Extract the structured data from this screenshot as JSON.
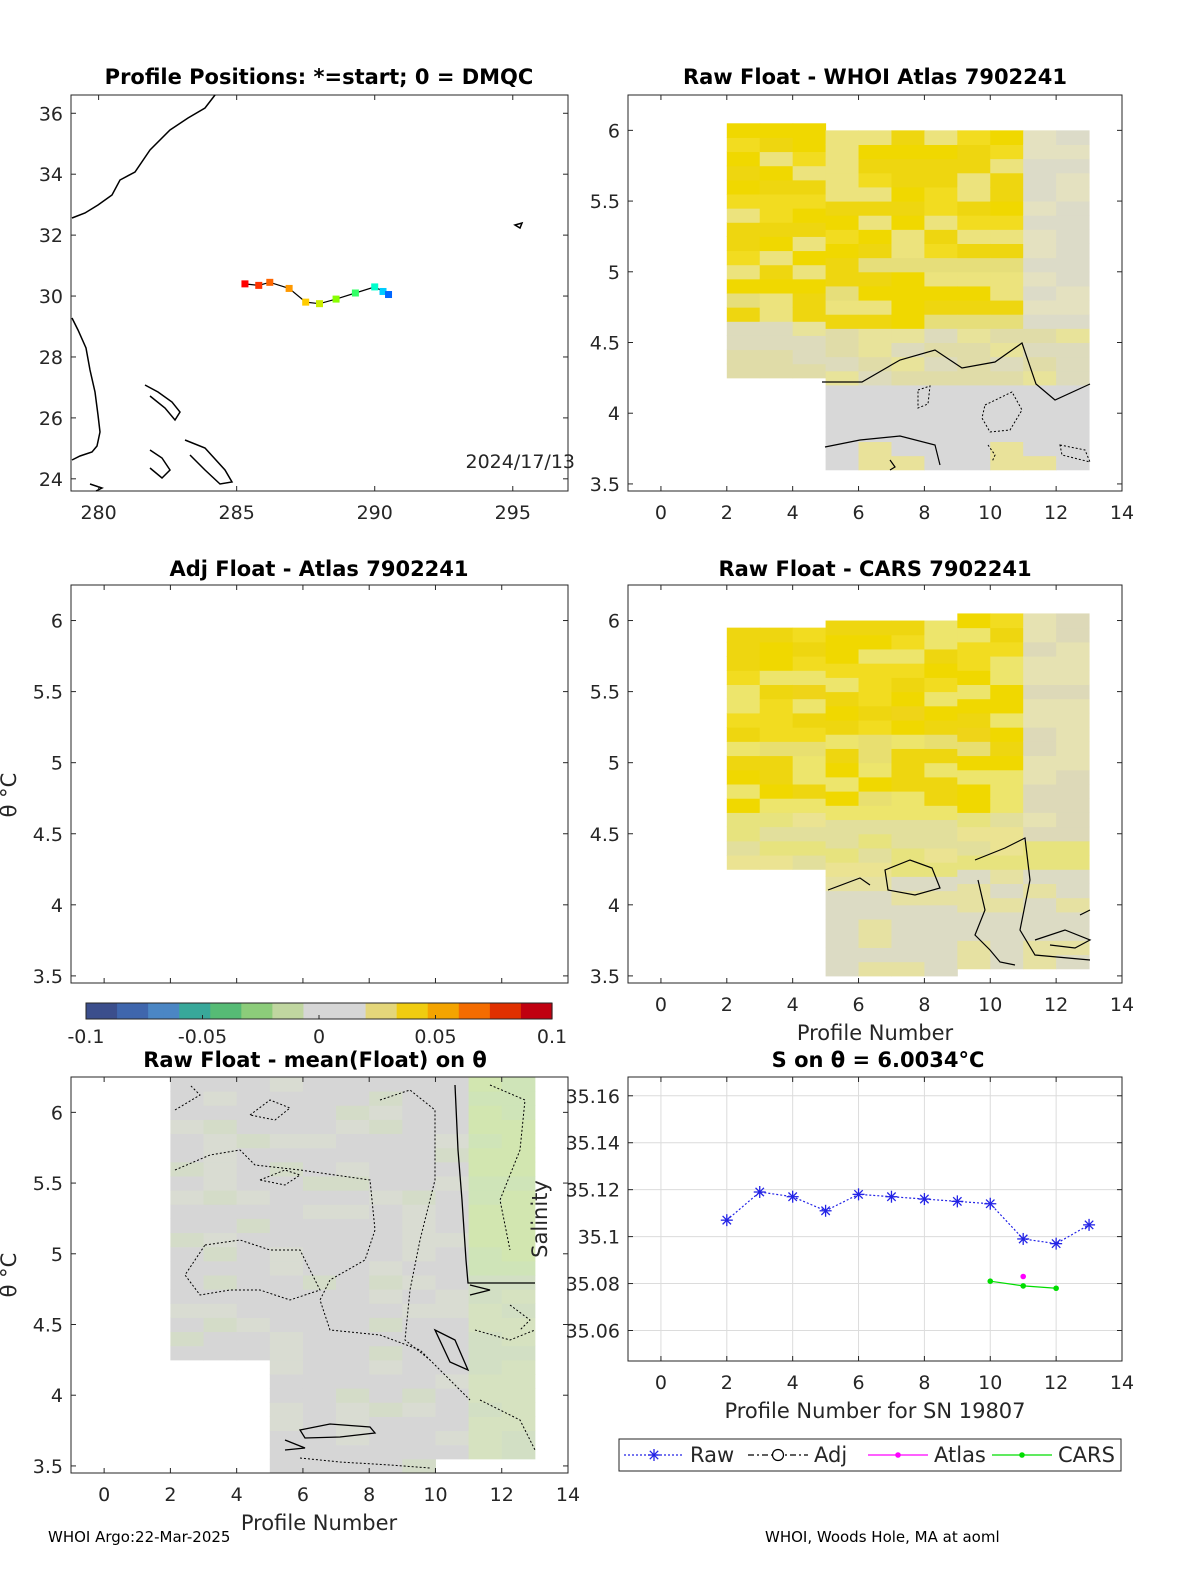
{
  "footer": {
    "left": "WHOI Argo:22-Mar-2025",
    "right": "WHOI, Woods Hole, MA at aoml"
  },
  "chart_data": [
    {
      "id": "map",
      "type": "scatter",
      "title": "Profile Positions: *=start; 0 = DMQC",
      "annotation": "2024/17/13",
      "xlim": [
        279,
        297
      ],
      "ylim": [
        23.6,
        36.6
      ],
      "xticks": [
        280,
        285,
        290,
        295
      ],
      "yticks": [
        24,
        26,
        28,
        30,
        32,
        34,
        36
      ],
      "track": {
        "lon": [
          285.3,
          285.8,
          286.2,
          286.9,
          287.5,
          288.0,
          288.6,
          289.3,
          290.0,
          290.3,
          290.5
        ],
        "lat": [
          30.4,
          30.35,
          30.45,
          30.25,
          29.8,
          29.75,
          29.9,
          30.1,
          30.3,
          30.15,
          30.05
        ],
        "colors": [
          "#ff0000",
          "#ff3300",
          "#ff6600",
          "#ff9900",
          "#ffcc00",
          "#ccee00",
          "#88ff00",
          "#33ff66",
          "#00ffcc",
          "#00ccff",
          "#0066ff"
        ]
      }
    },
    {
      "id": "whoi",
      "type": "heatmap",
      "title": "Raw Float - WHOI Atlas  7902241",
      "xlim": [
        -1,
        14
      ],
      "ylim": [
        3.45,
        6.25
      ],
      "xticks": [
        0,
        2,
        4,
        6,
        8,
        10,
        12,
        14
      ],
      "yticks": [
        3.5,
        4,
        4.5,
        5,
        5.5,
        6
      ]
    },
    {
      "id": "adj",
      "type": "heatmap",
      "title": "Adj Float - Atlas  7902241",
      "ylabel": "θ °C",
      "xlim": [
        -1,
        14
      ],
      "ylim": [
        3.45,
        6.25
      ],
      "yticks": [
        3.5,
        4,
        4.5,
        5,
        5.5,
        6
      ],
      "colorbar": {
        "range": [
          -0.1,
          0.1
        ],
        "tick_labels": [
          "-0.1",
          "-0.05",
          "0",
          "0.05",
          "0.1"
        ]
      }
    },
    {
      "id": "cars",
      "type": "heatmap",
      "title": "Raw Float - CARS  7902241",
      "xlabel": "Profile Number",
      "xlim": [
        -1,
        14
      ],
      "ylim": [
        3.45,
        6.25
      ],
      "xticks": [
        0,
        2,
        4,
        6,
        8,
        10,
        12,
        14
      ],
      "yticks": [
        3.5,
        4,
        4.5,
        5,
        5.5,
        6
      ]
    },
    {
      "id": "mean",
      "type": "heatmap",
      "title": "Raw Float - mean(Float) on θ",
      "xlabel": "Profile Number",
      "ylabel": "θ °C",
      "xlim": [
        -1,
        14
      ],
      "ylim": [
        3.45,
        6.25
      ],
      "xticks": [
        0,
        2,
        4,
        6,
        8,
        10,
        12,
        14
      ],
      "yticks": [
        3.5,
        4,
        4.5,
        5,
        5.5,
        6
      ]
    },
    {
      "id": "salinity",
      "type": "line",
      "title": "S on θ = 6.0034°C",
      "xlabel": "Profile Number for SN 19807",
      "ylabel": "Salinity",
      "xlim": [
        -1,
        14
      ],
      "ylim": [
        35.047,
        35.168
      ],
      "xticks": [
        0,
        2,
        4,
        6,
        8,
        10,
        12,
        14
      ],
      "yticks": [
        35.06,
        35.08,
        35.1,
        35.12,
        35.14,
        35.16
      ],
      "ytick_labels": [
        "35.06",
        "35.08",
        "35.1",
        "35.12",
        "35.14",
        "35.16"
      ],
      "grid": true,
      "legend_position": "bottom",
      "series": [
        {
          "name": "Raw",
          "color": "#2323e6",
          "x": [
            2,
            3,
            4,
            5,
            6,
            7,
            8,
            9,
            10,
            11,
            12,
            13
          ],
          "y": [
            35.107,
            35.119,
            35.117,
            35.111,
            35.118,
            35.117,
            35.116,
            35.115,
            35.114,
            35.099,
            35.097,
            35.105
          ]
        },
        {
          "name": "Adj",
          "color": "#000000",
          "x": [],
          "y": []
        },
        {
          "name": "Atlas",
          "color": "#ff00ff",
          "x": [
            11
          ],
          "y": [
            35.083
          ]
        },
        {
          "name": "CARS",
          "color": "#00dd00",
          "x": [
            10,
            11,
            12
          ],
          "y": [
            35.081,
            35.079,
            35.078
          ]
        }
      ]
    }
  ]
}
